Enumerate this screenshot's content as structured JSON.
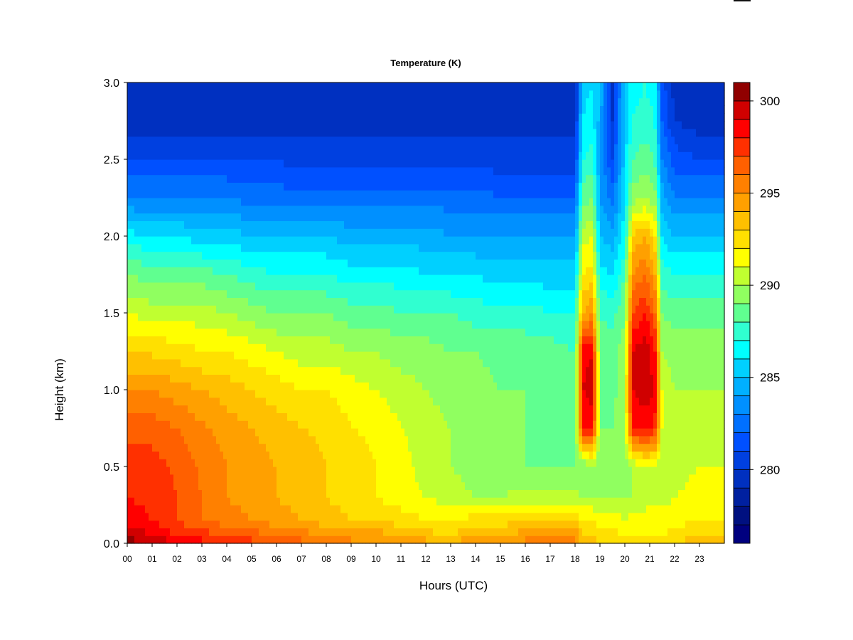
{
  "chart_data": {
    "type": "heatmap",
    "title": "Temperature (K)",
    "xlabel": "Hours (UTC)",
    "ylabel": "Height (km)",
    "xlim": [
      0,
      24
    ],
    "ylim": [
      0.0,
      3.0
    ],
    "x_ticks": [
      "00",
      "01",
      "02",
      "03",
      "04",
      "05",
      "06",
      "07",
      "08",
      "09",
      "10",
      "11",
      "12",
      "13",
      "14",
      "15",
      "16",
      "17",
      "18",
      "19",
      "20",
      "21",
      "22",
      "23"
    ],
    "y_ticks": [
      "0.0",
      "0.5",
      "1.0",
      "1.5",
      "2.0",
      "2.5",
      "3.0"
    ],
    "colorbar": {
      "min": 276,
      "max": 301,
      "levels": 25,
      "tick_labels": [
        "280",
        "285",
        "290",
        "295",
        "300"
      ],
      "tick_values": [
        280,
        285,
        290,
        295,
        300
      ],
      "colors": [
        "#00007f",
        "#001080",
        "#0020a0",
        "#0030c0",
        "#0040e0",
        "#0050ff",
        "#0070ff",
        "#0090ff",
        "#00b0ff",
        "#00d0ff",
        "#00ffff",
        "#30ffd0",
        "#60ff90",
        "#90ff60",
        "#c0ff30",
        "#ffff00",
        "#ffe000",
        "#ffc000",
        "#ffa000",
        "#ff8000",
        "#ff6000",
        "#ff3000",
        "#ff0000",
        "#d00000",
        "#900000"
      ]
    },
    "profile_km": [
      0.0,
      0.05,
      0.15,
      0.3,
      0.5,
      0.75,
      1.0,
      1.25,
      1.5,
      1.75,
      2.0,
      2.25,
      2.5,
      2.75,
      3.0
    ],
    "hours": [
      0,
      1,
      2,
      3,
      4,
      5,
      6,
      7,
      8,
      9,
      10,
      11,
      12,
      13,
      14,
      15,
      16,
      17,
      18,
      18.3,
      18.7,
      19,
      19.5,
      20,
      20.3,
      20.8,
      21.2,
      21.5,
      22,
      23,
      24
    ],
    "temperature_K": [
      [
        300.5,
        300.0,
        298.5,
        298.0,
        297.5,
        296.5,
        295.0,
        293.0,
        291.0,
        289.0,
        286.5,
        283.0,
        281.0,
        279.5,
        279.0
      ],
      [
        300.0,
        299.0,
        298.0,
        297.8,
        297.5,
        296.5,
        295.0,
        292.8,
        290.5,
        288.5,
        286.0,
        283.0,
        281.0,
        279.5,
        279.0
      ],
      [
        299.0,
        298.0,
        297.0,
        297.0,
        296.8,
        296.0,
        294.5,
        292.5,
        290.5,
        288.5,
        286.0,
        283.0,
        281.0,
        279.5,
        279.0
      ],
      [
        298.5,
        297.5,
        296.0,
        296.0,
        295.8,
        295.2,
        294.0,
        292.0,
        290.5,
        288.5,
        285.5,
        283.0,
        281.0,
        279.5,
        279.0
      ],
      [
        298.0,
        297.0,
        295.5,
        295.0,
        295.0,
        294.5,
        293.5,
        292.0,
        290.0,
        288.0,
        285.5,
        283.0,
        281.0,
        279.5,
        279.0
      ],
      [
        297.5,
        296.5,
        295.0,
        294.5,
        294.5,
        294.0,
        293.0,
        291.5,
        289.5,
        287.5,
        285.0,
        282.5,
        281.0,
        279.5,
        279.0
      ],
      [
        297.0,
        296.0,
        294.5,
        294.0,
        294.0,
        293.5,
        292.5,
        291.0,
        289.0,
        287.0,
        285.0,
        282.5,
        281.0,
        279.5,
        279.0
      ],
      [
        296.5,
        295.5,
        294.0,
        293.5,
        293.5,
        293.0,
        292.0,
        290.5,
        289.0,
        287.0,
        285.0,
        282.5,
        280.5,
        279.5,
        279.0
      ],
      [
        296.0,
        295.0,
        293.5,
        293.0,
        293.0,
        292.8,
        292.0,
        290.5,
        289.0,
        287.0,
        285.0,
        282.5,
        280.5,
        279.5,
        279.0
      ],
      [
        295.5,
        294.5,
        293.0,
        292.5,
        292.5,
        292.0,
        291.5,
        290.0,
        288.5,
        286.5,
        284.5,
        282.5,
        280.5,
        279.5,
        279.0
      ],
      [
        295.0,
        294.5,
        293.0,
        292.0,
        292.0,
        291.8,
        291.0,
        290.0,
        288.5,
        286.5,
        284.5,
        282.5,
        280.5,
        279.5,
        279.0
      ],
      [
        295.0,
        294.0,
        292.5,
        291.5,
        291.5,
        291.0,
        290.5,
        289.5,
        288.0,
        286.5,
        284.5,
        282.5,
        280.5,
        279.5,
        279.0
      ],
      [
        294.5,
        293.5,
        292.0,
        291.0,
        290.5,
        290.5,
        290.0,
        289.5,
        288.0,
        286.0,
        284.5,
        282.5,
        280.5,
        279.5,
        279.0
      ],
      [
        294.0,
        293.0,
        292.0,
        290.5,
        290.0,
        290.0,
        289.5,
        289.0,
        288.0,
        286.0,
        284.0,
        282.5,
        280.5,
        279.5,
        279.0
      ],
      [
        295.0,
        294.0,
        292.5,
        290.0,
        289.5,
        289.5,
        289.5,
        289.0,
        287.5,
        286.0,
        284.0,
        282.5,
        280.5,
        279.5,
        279.0
      ],
      [
        295.0,
        294.0,
        292.5,
        290.0,
        289.0,
        289.0,
        289.0,
        288.5,
        287.5,
        285.5,
        284.0,
        282.0,
        280.5,
        279.5,
        279.0
      ],
      [
        295.5,
        294.5,
        293.0,
        290.5,
        289.0,
        289.0,
        289.0,
        288.5,
        287.5,
        285.5,
        284.0,
        282.0,
        280.5,
        279.5,
        279.0
      ],
      [
        296.0,
        295.0,
        293.0,
        290.5,
        289.0,
        288.5,
        288.5,
        288.5,
        287.0,
        285.5,
        284.0,
        282.0,
        280.5,
        279.5,
        279.0
      ],
      [
        296.0,
        295.0,
        293.0,
        290.5,
        289.0,
        288.5,
        288.5,
        288.0,
        287.0,
        285.5,
        284.0,
        282.0,
        280.5,
        279.5,
        279.0
      ],
      [
        293.5,
        293.0,
        292.0,
        290.0,
        289.0,
        298.0,
        299.0,
        298.5,
        294.0,
        292.0,
        290.5,
        288.5,
        287.0,
        286.0,
        285.5
      ],
      [
        293.5,
        293.0,
        292.0,
        290.0,
        289.5,
        298.5,
        299.5,
        299.0,
        295.0,
        292.5,
        291.0,
        289.0,
        287.5,
        286.5,
        286.0
      ],
      [
        293.0,
        292.5,
        291.5,
        290.0,
        289.0,
        289.0,
        289.0,
        288.5,
        288.0,
        286.5,
        285.0,
        284.0,
        284.0,
        284.5,
        285.0
      ],
      [
        293.0,
        292.5,
        291.5,
        290.0,
        289.0,
        289.0,
        288.5,
        288.5,
        287.5,
        286.0,
        284.5,
        282.5,
        281.0,
        280.0,
        279.5
      ],
      [
        292.5,
        292.0,
        291.0,
        290.0,
        289.5,
        290.0,
        290.0,
        289.5,
        289.0,
        288.0,
        286.5,
        286.0,
        285.5,
        285.5,
        285.5
      ],
      [
        292.5,
        292.0,
        291.5,
        290.0,
        290.0,
        298.0,
        299.0,
        299.0,
        297.0,
        295.0,
        293.0,
        289.5,
        288.0,
        287.0,
        286.5
      ],
      [
        292.5,
        292.0,
        291.5,
        290.5,
        291.0,
        298.5,
        299.5,
        299.5,
        298.0,
        296.0,
        294.0,
        290.0,
        288.5,
        287.5,
        287.0
      ],
      [
        292.5,
        292.0,
        291.5,
        290.5,
        290.5,
        298.0,
        299.0,
        298.5,
        296.5,
        294.5,
        292.5,
        289.5,
        288.0,
        287.0,
        286.5
      ],
      [
        292.5,
        292.0,
        291.5,
        290.5,
        290.5,
        291.0,
        291.0,
        290.0,
        289.0,
        287.5,
        286.0,
        284.5,
        283.0,
        282.0,
        281.5
      ],
      [
        293.0,
        292.5,
        291.5,
        291.0,
        290.5,
        290.5,
        290.0,
        289.5,
        288.5,
        287.0,
        285.0,
        283.0,
        281.5,
        280.0,
        279.5
      ],
      [
        293.5,
        293.0,
        292.0,
        291.5,
        291.0,
        290.5,
        290.0,
        289.5,
        288.5,
        287.0,
        285.0,
        283.0,
        281.0,
        279.5,
        279.0
      ],
      [
        293.5,
        293.0,
        292.0,
        291.5,
        291.0,
        290.5,
        290.0,
        289.5,
        288.5,
        287.0,
        285.0,
        283.0,
        281.0,
        279.5,
        279.0
      ]
    ]
  }
}
